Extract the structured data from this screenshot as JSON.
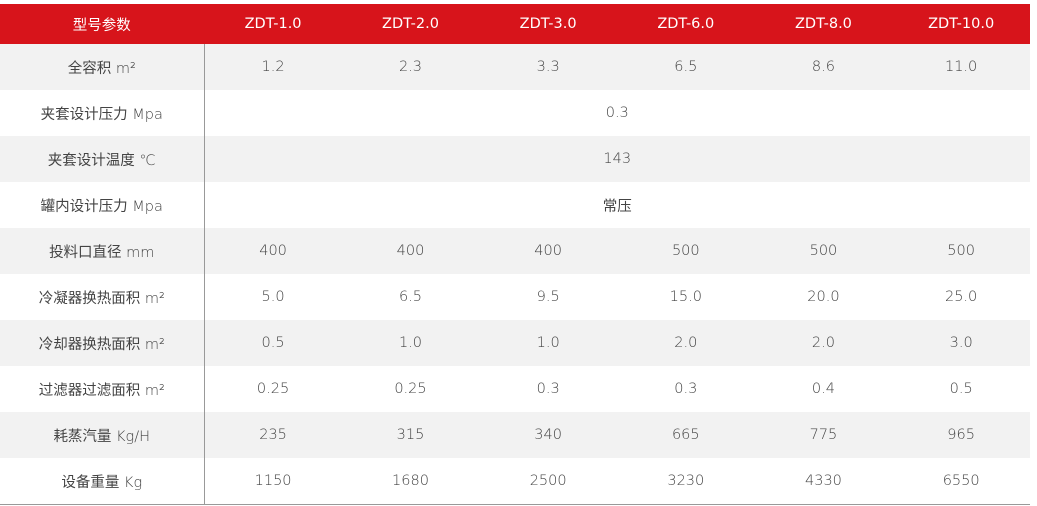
{
  "table": {
    "header": [
      "型号参数",
      "ZDT-1.0",
      "ZDT-2.0",
      "ZDT-3.0",
      "ZDT-6.0",
      "ZDT-8.0",
      "ZDT-10.0"
    ],
    "rows": [
      [
        "全容积 m²",
        "1.2",
        "2.3",
        "3.3",
        "6.5",
        "8.6",
        "11.0"
      ],
      [
        "夹套设计压力 Mpa",
        "0.3"
      ],
      [
        "夹套设计温度 ℃",
        "143"
      ],
      [
        "罐内设计压力 Mpa",
        "常压"
      ],
      [
        "投料口直径 mm",
        "400",
        "400",
        "400",
        "500",
        "500",
        "500"
      ],
      [
        "冷凝器换热面积 m²",
        "5.0",
        "6.5",
        "9.5",
        "15.0",
        "20.0",
        "25.0"
      ],
      [
        "冷却器换热面积 m²",
        "0.5",
        "1.0",
        "1.0",
        "2.0",
        "2.0",
        "3.0"
      ],
      [
        "过滤器过滤面积 m²",
        "0.25",
        "0.25",
        "0.3",
        "0.3",
        "0.4",
        "0.5"
      ],
      [
        "耗蒸汽量 Kg/H",
        "235",
        "315",
        "340",
        "665",
        "775",
        "965"
      ],
      [
        "设备重量 Kg",
        "1150",
        "1680",
        "2500",
        "3230",
        "4330",
        "6550"
      ]
    ]
  }
}
